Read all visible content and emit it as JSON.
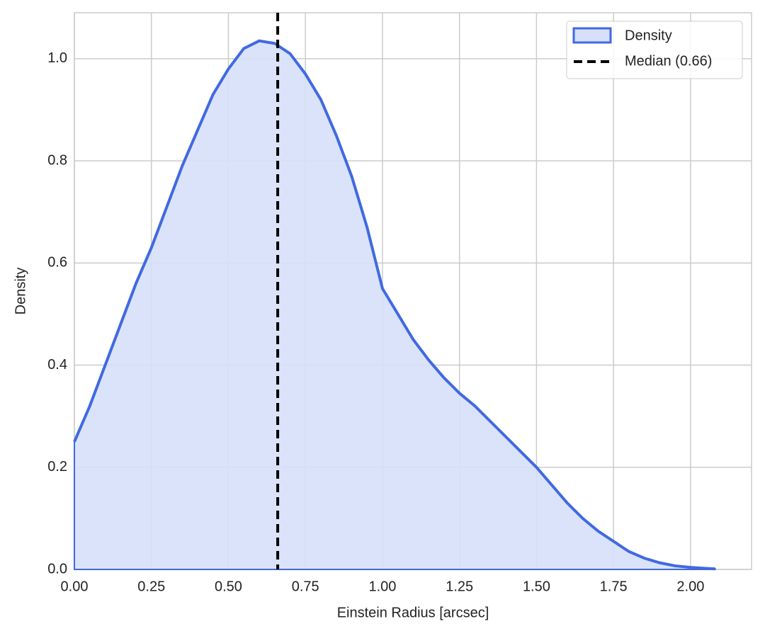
{
  "chart_data": {
    "type": "area",
    "xlabel": "Einstein Radius [arcsec]",
    "ylabel": "Density",
    "x": [
      0,
      0.05,
      0.1,
      0.15,
      0.2,
      0.25,
      0.3,
      0.35,
      0.4,
      0.45,
      0.5,
      0.55,
      0.6,
      0.65,
      0.7,
      0.75,
      0.8,
      0.85,
      0.9,
      0.95,
      1.0,
      1.05,
      1.1,
      1.15,
      1.2,
      1.25,
      1.3,
      1.35,
      1.4,
      1.45,
      1.5,
      1.55,
      1.6,
      1.65,
      1.7,
      1.75,
      1.8,
      1.85,
      1.9,
      1.95,
      2.0,
      2.05,
      2.08
    ],
    "series": [
      {
        "name": "Density",
        "color": "#4169e1",
        "fill": "#d6e0f8",
        "values": [
          0.25,
          0.32,
          0.4,
          0.48,
          0.56,
          0.63,
          0.71,
          0.79,
          0.86,
          0.93,
          0.98,
          1.02,
          1.035,
          1.03,
          1.01,
          0.97,
          0.92,
          0.85,
          0.77,
          0.67,
          0.55,
          0.5,
          0.45,
          0.41,
          0.375,
          0.345,
          0.32,
          0.29,
          0.26,
          0.23,
          0.2,
          0.165,
          0.13,
          0.1,
          0.075,
          0.055,
          0.035,
          0.022,
          0.013,
          0.007,
          0.004,
          0.002,
          0.001
        ]
      }
    ],
    "median": {
      "name": "Median (0.66)",
      "value": 0.66,
      "color": "#000000"
    },
    "xlim": [
      0,
      2.198
    ],
    "ylim": [
      0,
      1.09
    ],
    "xticks": [
      {
        "value": 0,
        "label": "0.00"
      },
      0.25,
      {
        "value": 0.5,
        "label": "0.50"
      },
      0.75,
      {
        "value": 1,
        "label": "1.00"
      },
      1.25,
      {
        "value": 1.5,
        "label": "1.50"
      },
      1.75,
      {
        "value": 2,
        "label": "2.00"
      }
    ],
    "yticks": [
      {
        "value": 0,
        "label": "0.0"
      },
      0.2,
      0.4,
      0.6,
      0.8,
      {
        "value": 1,
        "label": "1.0"
      }
    ],
    "grid": true,
    "legend": "upper right"
  }
}
